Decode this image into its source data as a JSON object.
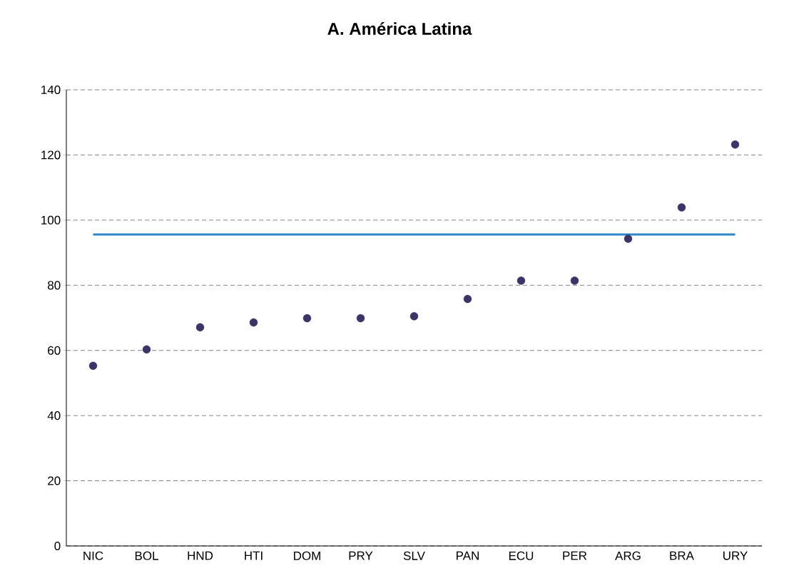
{
  "chart_data": {
    "type": "scatter",
    "title": "A. América Latina",
    "categories": [
      "NIC",
      "BOL",
      "HND",
      "HTI",
      "DOM",
      "PRY",
      "SLV",
      "PAN",
      "ECU",
      "PER",
      "ARG",
      "BRA",
      "URY"
    ],
    "values": [
      55.3,
      60.3,
      67.1,
      68.6,
      69.9,
      69.9,
      70.5,
      75.8,
      81.4,
      81.4,
      94.3,
      103.9,
      123.2
    ],
    "color": "#3b3466",
    "marker": "circle",
    "ylim": [
      0,
      140
    ],
    "yticks": [
      0,
      20,
      40,
      60,
      80,
      100,
      120,
      140
    ],
    "grid": "y",
    "ref_lines": [
      {
        "axis": "y",
        "value": 95.6,
        "color": "#2e86c8",
        "line_style": "solid"
      }
    ]
  }
}
